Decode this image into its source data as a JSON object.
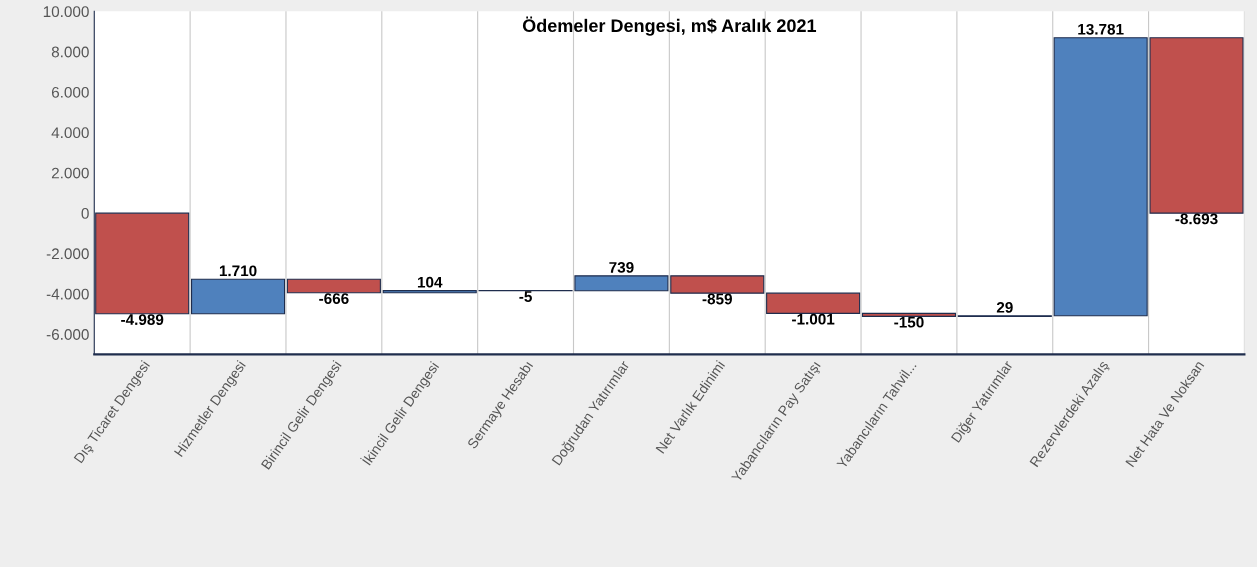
{
  "chart_data": {
    "type": "bar",
    "title": "Ödemeler Dengesi, m$ Aralık 2021",
    "categories": [
      "Dış Ticaret Dengesi",
      "Hizmetler Dengesi",
      "Birincil Gelir Dengesi",
      "İkincil Gelir Dengesi",
      "Sermaye Hesabı",
      "Doğrudan Yatırımlar",
      "Net Varlık Edinimi",
      "Yabancıların Pay Satışı",
      "Yabancıların Tahvil...",
      "Diğer Yatırımlar",
      "Rezervlerdeki Azalış",
      "Net Hata Ve Noksan"
    ],
    "values": [
      -4989,
      1710,
      -666,
      104,
      -5,
      739,
      -859,
      -1001,
      -150,
      29,
      13781,
      -8693
    ],
    "base": [
      0,
      -4989,
      -3279,
      -3945,
      -3841,
      -3846,
      -3107,
      -3966,
      -4967,
      -5117,
      -5088,
      8693
    ],
    "colors": [
      "#c0504d",
      "#4f81bd",
      "#c0504d",
      "#4f81bd",
      "#c0504d",
      "#4f81bd",
      "#c0504d",
      "#c0504d",
      "#c0504d",
      "#4f81bd",
      "#4f81bd",
      "#c0504d"
    ],
    "value_labels": [
      "-4.989",
      "1.710",
      "-666",
      "104",
      "-5",
      "739",
      "-859",
      "-1.001",
      "-150",
      "29",
      "13.781",
      "-8.693"
    ],
    "ylim": [
      -7000,
      10000
    ],
    "yticks": [
      {
        "value": -6000,
        "label": "-6.000"
      },
      {
        "value": -4000,
        "label": "-4.000"
      },
      {
        "value": -2000,
        "label": "-2.000"
      },
      {
        "value": 0,
        "label": "0"
      },
      {
        "value": 2000,
        "label": "2.000"
      },
      {
        "value": 4000,
        "label": "4.000"
      },
      {
        "value": 6000,
        "label": "6.000"
      },
      {
        "value": 8000,
        "label": "8.000"
      },
      {
        "value": 10000,
        "label": "10.000"
      }
    ],
    "grid": "x"
  }
}
